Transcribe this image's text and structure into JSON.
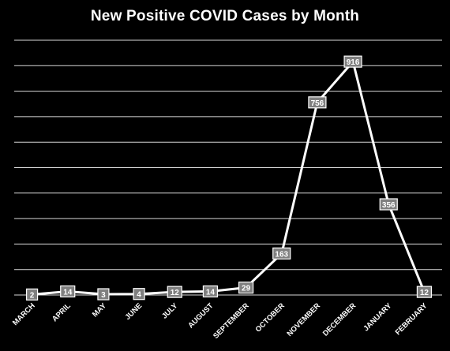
{
  "chart_data": {
    "type": "line",
    "title": "New Positive COVID Cases by Month",
    "xlabel": "",
    "ylabel": "",
    "categories": [
      "MARCH",
      "APRIL",
      "MAY",
      "JUNE",
      "JULY",
      "AUGUST",
      "SEPTEMBER",
      "OCTOBER",
      "NOVEMBER",
      "DECEMBER",
      "JANUARY",
      "FEBRUARY"
    ],
    "values": [
      2,
      14,
      3,
      4,
      12,
      14,
      29,
      163,
      756,
      916,
      356,
      12
    ],
    "ylim": [
      0,
      1000
    ],
    "grid": true,
    "legend": "none",
    "colors": {
      "background": "#000000",
      "line": "#ffffff",
      "gridline": "#d9d9d9",
      "label_box": "#7f7f7f",
      "label_border": "#ffffff",
      "text": "#ffffff"
    }
  }
}
